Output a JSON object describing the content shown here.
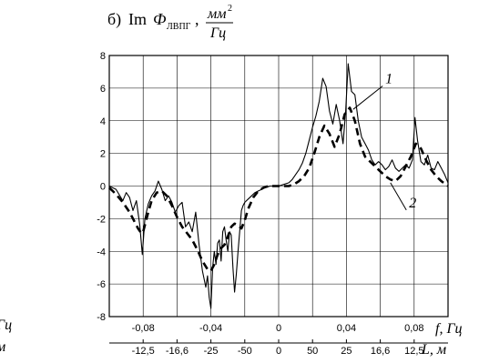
{
  "chart_data": {
    "type": "line",
    "title": {
      "prefix": "б)",
      "im": "Im",
      "phi": "Ф",
      "sub": "ЛВПГ",
      "sep": ",",
      "num": "мм",
      "num_sup": "2",
      "den": "Гц"
    },
    "xlabel": {
      "f": "f, Гц",
      "L": "L, м"
    },
    "edge_labels": {
      "top": "Гц",
      "bottom": "м"
    },
    "xlim": [
      -0.1,
      0.1
    ],
    "ylim": [
      -8,
      8
    ],
    "y_ticks": [
      "8",
      "6",
      "4",
      "2",
      "0",
      "-2",
      "-4",
      "-6",
      "-8"
    ],
    "x_ticks": [
      {
        "label": "-0,08",
        "value": -0.08
      },
      {
        "label": "-0,04",
        "value": -0.04
      },
      {
        "label": "0",
        "value": 0
      },
      {
        "label": "0,04",
        "value": 0.04
      },
      {
        "label": "0,08",
        "value": 0.08
      }
    ],
    "L_ticks": [
      {
        "label": "-12,5",
        "value": -0.08
      },
      {
        "label": "-16,6",
        "value": -0.06
      },
      {
        "label": "-25",
        "value": -0.04
      },
      {
        "label": "-50",
        "value": -0.02
      },
      {
        "label": "0",
        "value": 0
      },
      {
        "label": "50",
        "value": 0.02
      },
      {
        "label": "25",
        "value": 0.04
      },
      {
        "label": "16,6",
        "value": 0.06
      },
      {
        "label": "12,5",
        "value": 0.08
      }
    ],
    "grid": true,
    "series": [
      {
        "name": "1",
        "style": "solid",
        "x": [
          -0.1,
          -0.096,
          -0.092,
          -0.09,
          -0.088,
          -0.086,
          -0.084,
          -0.082,
          -0.0805,
          -0.079,
          -0.077,
          -0.075,
          -0.073,
          -0.071,
          -0.069,
          -0.067,
          -0.065,
          -0.063,
          -0.061,
          -0.059,
          -0.057,
          -0.055,
          -0.053,
          -0.051,
          -0.049,
          -0.047,
          -0.045,
          -0.043,
          -0.042,
          -0.041,
          -0.04,
          -0.039,
          -0.038,
          -0.037,
          -0.036,
          -0.035,
          -0.034,
          -0.033,
          -0.032,
          -0.031,
          -0.03,
          -0.029,
          -0.028,
          -0.027,
          -0.026,
          -0.025,
          -0.024,
          -0.023,
          -0.022,
          -0.021,
          -0.02,
          -0.018,
          -0.016,
          -0.014,
          -0.012,
          -0.01,
          -0.008,
          -0.005,
          -0.002,
          0.0,
          0.003,
          0.006,
          0.008,
          0.01,
          0.012,
          0.014,
          0.016,
          0.018,
          0.02,
          0.022,
          0.024,
          0.026,
          0.028,
          0.03,
          0.032,
          0.034,
          0.036,
          0.038,
          0.0395,
          0.041,
          0.043,
          0.045,
          0.047,
          0.049,
          0.051,
          0.053,
          0.055,
          0.057,
          0.059,
          0.061,
          0.063,
          0.065,
          0.067,
          0.069,
          0.071,
          0.073,
          0.075,
          0.077,
          0.079,
          0.0805,
          0.082,
          0.084,
          0.086,
          0.088,
          0.09,
          0.092,
          0.094,
          0.096,
          0.098,
          0.1
        ],
        "y": [
          0,
          -0.2,
          -0.9,
          -0.4,
          -0.7,
          -1.5,
          -0.9,
          -2.4,
          -4.2,
          -2.0,
          -1.1,
          -0.6,
          -0.3,
          0.3,
          -0.2,
          -0.9,
          -0.6,
          -1.0,
          -1.6,
          -1.2,
          -1.0,
          -2.5,
          -2.2,
          -2.8,
          -1.6,
          -3.6,
          -5.2,
          -6.2,
          -5.5,
          -6.8,
          -7.5,
          -5.0,
          -4.0,
          -4.8,
          -3.5,
          -3.3,
          -4.6,
          -2.8,
          -2.5,
          -3.3,
          -4.0,
          -2.8,
          -3.0,
          -5.0,
          -6.5,
          -5.4,
          -4.0,
          -2.8,
          -1.5,
          -1.2,
          -1.0,
          -0.8,
          -0.6,
          -0.4,
          -0.3,
          -0.2,
          -0.1,
          0.0,
          0.0,
          0.0,
          0.1,
          0.2,
          0.4,
          0.7,
          1.0,
          1.4,
          2.0,
          2.8,
          3.6,
          4.3,
          5.2,
          6.6,
          6.1,
          4.6,
          3.8,
          5.0,
          4.0,
          2.6,
          4.5,
          7.5,
          5.8,
          5.6,
          4.0,
          3.0,
          2.6,
          2.2,
          1.6,
          1.3,
          1.5,
          1.3,
          1.0,
          1.2,
          1.6,
          1.1,
          0.9,
          1.1,
          1.3,
          1.1,
          1.6,
          4.2,
          2.8,
          1.5,
          1.3,
          1.9,
          1.1,
          1.0,
          1.5,
          1.1,
          0.7,
          0.2
        ]
      },
      {
        "name": "2",
        "style": "dashed",
        "x": [
          -0.1,
          -0.096,
          -0.092,
          -0.088,
          -0.085,
          -0.083,
          -0.081,
          -0.08,
          -0.079,
          -0.077,
          -0.075,
          -0.072,
          -0.069,
          -0.066,
          -0.063,
          -0.06,
          -0.057,
          -0.054,
          -0.051,
          -0.048,
          -0.045,
          -0.042,
          -0.04,
          -0.038,
          -0.036,
          -0.034,
          -0.032,
          -0.03,
          -0.028,
          -0.026,
          -0.024,
          -0.022,
          -0.02,
          -0.018,
          -0.015,
          -0.012,
          -0.009,
          -0.006,
          -0.003,
          0.0,
          0.003,
          0.006,
          0.009,
          0.012,
          0.015,
          0.018,
          0.021,
          0.024,
          0.027,
          0.03,
          0.033,
          0.036,
          0.039,
          0.042,
          0.045,
          0.048,
          0.051,
          0.054,
          0.057,
          0.06,
          0.063,
          0.066,
          0.069,
          0.072,
          0.075,
          0.078,
          0.081,
          0.084,
          0.087,
          0.09,
          0.093,
          0.096,
          0.1
        ],
        "y": [
          -0.1,
          -0.5,
          -1.0,
          -1.6,
          -2.2,
          -2.6,
          -2.9,
          -2.8,
          -2.4,
          -1.6,
          -0.9,
          -0.4,
          -0.3,
          -0.6,
          -1.2,
          -1.9,
          -2.5,
          -2.9,
          -3.3,
          -3.9,
          -4.6,
          -5.1,
          -5.2,
          -4.8,
          -4.2,
          -3.8,
          -3.6,
          -3.1,
          -2.5,
          -2.3,
          -2.4,
          -2.6,
          -2.1,
          -1.4,
          -0.7,
          -0.3,
          -0.1,
          0.0,
          0.0,
          0.0,
          0.0,
          0.0,
          0.1,
          0.3,
          0.6,
          1.1,
          2.0,
          3.0,
          3.7,
          3.2,
          2.4,
          3.2,
          4.4,
          4.8,
          4.0,
          2.6,
          1.8,
          1.5,
          1.2,
          0.9,
          0.6,
          0.4,
          0.3,
          0.6,
          1.2,
          1.8,
          2.6,
          2.3,
          1.6,
          1.0,
          0.6,
          0.3,
          0.0
        ]
      }
    ],
    "annotations": [
      {
        "text": "1",
        "x": 0.063,
        "y": 6.3,
        "ax": 0.044,
        "ay": 4.7
      },
      {
        "text": "2",
        "x": 0.077,
        "y": -1.3,
        "ax": 0.066,
        "ay": 0.2
      }
    ]
  }
}
